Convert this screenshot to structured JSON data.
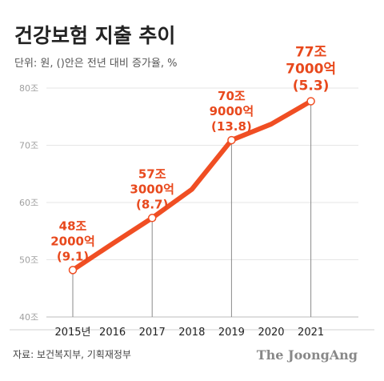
{
  "chart_data": {
    "type": "line",
    "title": "건강보험 지출 추이",
    "subtitle": "단위: 원, ()안은 전년 대비 증가율, %",
    "x": [
      "2015년",
      "2016",
      "2017",
      "2018",
      "2019",
      "2020",
      "2021"
    ],
    "series": [
      {
        "values": [
          48.2,
          52.8,
          57.3,
          62.3,
          70.9,
          73.7,
          77.7
        ]
      }
    ],
    "y_ticks": [
      "40조",
      "50조",
      "60조",
      "70조",
      "80조"
    ],
    "ylim": [
      40,
      80
    ],
    "annotations": [
      {
        "x": "2015년",
        "lines": [
          "48조",
          "2000억",
          "(9.1)"
        ]
      },
      {
        "x": "2017",
        "lines": [
          "57조",
          "3000억",
          "(8.7)"
        ]
      },
      {
        "x": "2019",
        "lines": [
          "70조",
          "9000억",
          "(13.8)"
        ]
      },
      {
        "x": "2021",
        "lines": [
          "77조",
          "7000억",
          "(5.3)"
        ]
      }
    ],
    "marked_points": [
      "2015년",
      "2017",
      "2019",
      "2021"
    ],
    "grid": true,
    "line_color": "#f04e23",
    "label_color": "#e8491d"
  },
  "footer": {
    "source": "자료: 보건복지부, 기획재정부",
    "brand": "The JoongAng"
  }
}
